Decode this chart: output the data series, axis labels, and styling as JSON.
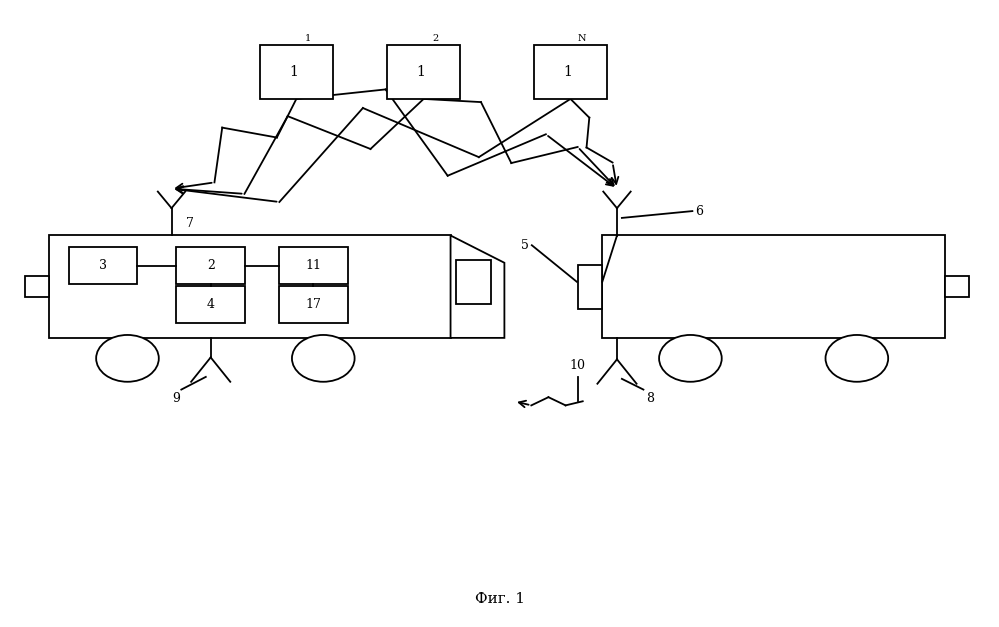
{
  "title": "Фиг. 1",
  "bg_color": "#ffffff",
  "line_color": "#000000",
  "fig_width": 9.99,
  "fig_height": 6.27,
  "dpi": 100,
  "xlim": [
    0,
    100
  ],
  "ylim": [
    0,
    63
  ]
}
